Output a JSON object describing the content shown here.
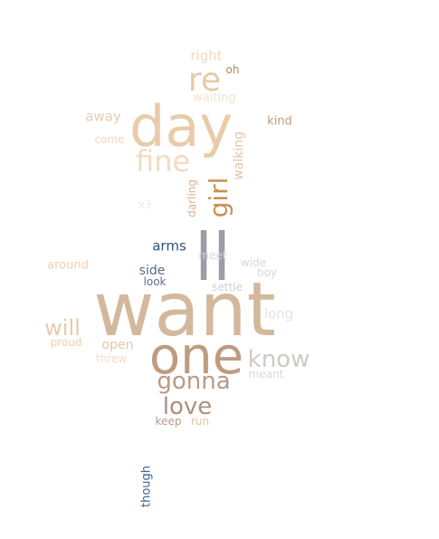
{
  "words": [
    {
      "text": "want",
      "color": "#d3b89c"
    },
    {
      "text": "day",
      "color": "#e8ccaa"
    },
    {
      "text": "ll",
      "color": "#9b9ea6"
    },
    {
      "text": "one",
      "color": "#bf9b80"
    },
    {
      "text": "re",
      "color": "#e6c9a8"
    },
    {
      "text": "fine",
      "color": "#f1dcc4"
    },
    {
      "text": "know",
      "color": "#cfc9c7"
    },
    {
      "text": "gonna",
      "color": "#b89b86"
    },
    {
      "text": "love",
      "color": "#ad8f80"
    },
    {
      "text": "girl",
      "color": "#c98f53"
    },
    {
      "text": "will",
      "color": "#ebc9ab"
    },
    {
      "text": "right",
      "color": "#f2d9bf"
    },
    {
      "text": "away",
      "color": "#e6cdb3"
    },
    {
      "text": "oh",
      "color": "#b38a60"
    },
    {
      "text": "waiting",
      "color": "#f3e2cf"
    },
    {
      "text": "kind",
      "color": "#c49a7a"
    },
    {
      "text": "come",
      "color": "#f0d9c3"
    },
    {
      "text": "walking",
      "color": "#e2c6a5"
    },
    {
      "text": "darling",
      "color": "#d9b08a"
    },
    {
      "text": "x3",
      "color": "#f5e6d6"
    },
    {
      "text": "arms",
      "color": "#34507a"
    },
    {
      "text": "meet",
      "color": "#d6d6d6"
    },
    {
      "text": "wide",
      "color": "#d8d8d8"
    },
    {
      "text": "around",
      "color": "#f0cfaf"
    },
    {
      "text": "side",
      "color": "#556a8f"
    },
    {
      "text": "boy",
      "color": "#d6d6d6"
    },
    {
      "text": "look",
      "color": "#5d6f8f"
    },
    {
      "text": "settle",
      "color": "#cfcfcf"
    },
    {
      "text": "long",
      "color": "#e8e3df"
    },
    {
      "text": "proud",
      "color": "#f0cfae"
    },
    {
      "text": "open",
      "color": "#e6c7a8"
    },
    {
      "text": "threw",
      "color": "#f3dcc7"
    },
    {
      "text": "meant",
      "color": "#d9d9d9"
    },
    {
      "text": "keep",
      "color": "#b99a8e"
    },
    {
      "text": "run",
      "color": "#e6c0a0"
    },
    {
      "text": "though",
      "color": "#3d6390"
    }
  ]
}
